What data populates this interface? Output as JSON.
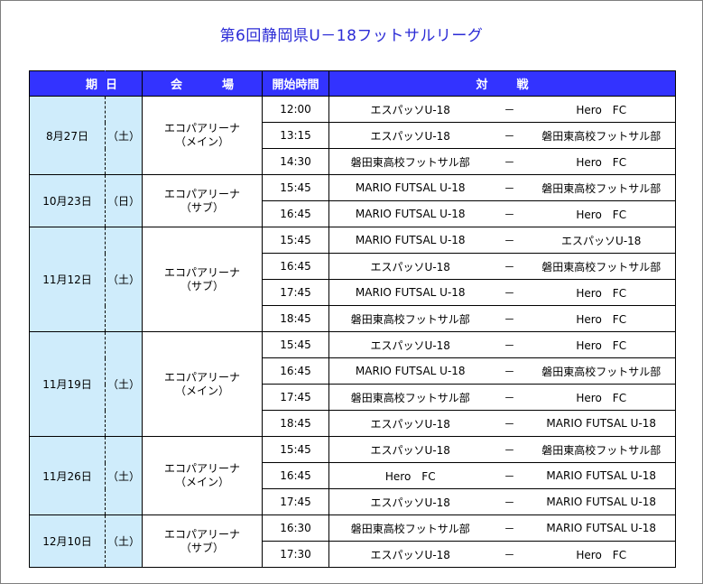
{
  "title": "第6回静岡県U－18フットサルリーグ",
  "headers": {
    "date_a": "期",
    "date_b": "日",
    "venue_a": "会",
    "venue_b": "場",
    "time": "開始時間",
    "match_a": "対",
    "match_b": "戦"
  },
  "days": [
    {
      "date": "8月27日",
      "dow": "（土）",
      "venue1": "エコパアリーナ",
      "venue2": "（メイン）",
      "matches": [
        {
          "time": "12:00",
          "home": "エスパッソU-18",
          "sep": "－",
          "away": "Hero　FC"
        },
        {
          "time": "13:15",
          "home": "エスパッソU-18",
          "sep": "－",
          "away": "磐田東高校フットサル部"
        },
        {
          "time": "14:30",
          "home": "磐田東高校フットサル部",
          "sep": "－",
          "away": "Hero　FC"
        }
      ]
    },
    {
      "date": "10月23日",
      "dow": "（日）",
      "venue1": "エコパアリーナ",
      "venue2": "（サブ）",
      "matches": [
        {
          "time": "15:45",
          "home": "MARIO FUTSAL U-18",
          "sep": "－",
          "away": "磐田東高校フットサル部"
        },
        {
          "time": "16:45",
          "home": "MARIO FUTSAL U-18",
          "sep": "－",
          "away": "Hero　FC"
        }
      ]
    },
    {
      "date": "11月12日",
      "dow": "（土）",
      "venue1": "エコパアリーナ",
      "venue2": "（サブ）",
      "matches": [
        {
          "time": "15:45",
          "home": "MARIO FUTSAL U-18",
          "sep": "－",
          "away": "エスパッソU-18"
        },
        {
          "time": "16:45",
          "home": "エスパッソU-18",
          "sep": "－",
          "away": "磐田東高校フットサル部"
        },
        {
          "time": "17:45",
          "home": "MARIO FUTSAL U-18",
          "sep": "－",
          "away": "Hero　FC"
        },
        {
          "time": "18:45",
          "home": "磐田東高校フットサル部",
          "sep": "－",
          "away": "Hero　FC"
        }
      ]
    },
    {
      "date": "11月19日",
      "dow": "（土）",
      "venue1": "エコパアリーナ",
      "venue2": "（メイン）",
      "matches": [
        {
          "time": "15:45",
          "home": "エスパッソU-18",
          "sep": "－",
          "away": "Hero　FC"
        },
        {
          "time": "16:45",
          "home": "MARIO FUTSAL U-18",
          "sep": "－",
          "away": "磐田東高校フットサル部"
        },
        {
          "time": "17:45",
          "home": "磐田東高校フットサル部",
          "sep": "－",
          "away": "Hero　FC"
        },
        {
          "time": "18:45",
          "home": "エスパッソU-18",
          "sep": "－",
          "away": "MARIO FUTSAL U-18"
        }
      ]
    },
    {
      "date": "11月26日",
      "dow": "（土）",
      "venue1": "エコパアリーナ",
      "venue2": "（メイン）",
      "matches": [
        {
          "time": "15:45",
          "home": "エスパッソU-18",
          "sep": "－",
          "away": "磐田東高校フットサル部"
        },
        {
          "time": "16:45",
          "home": "Hero　FC",
          "sep": "－",
          "away": "MARIO FUTSAL U-18"
        },
        {
          "time": "17:45",
          "home": "エスパッソU-18",
          "sep": "－",
          "away": "MARIO FUTSAL U-18"
        }
      ]
    },
    {
      "date": "12月10日",
      "dow": "（土）",
      "venue1": "エコパアリーナ",
      "venue2": "（サブ）",
      "matches": [
        {
          "time": "16:30",
          "home": "磐田東高校フットサル部",
          "sep": "－",
          "away": "MARIO FUTSAL U-18"
        },
        {
          "time": "17:30",
          "home": "エスパッソU-18",
          "sep": "－",
          "away": "Hero　FC"
        }
      ]
    }
  ]
}
